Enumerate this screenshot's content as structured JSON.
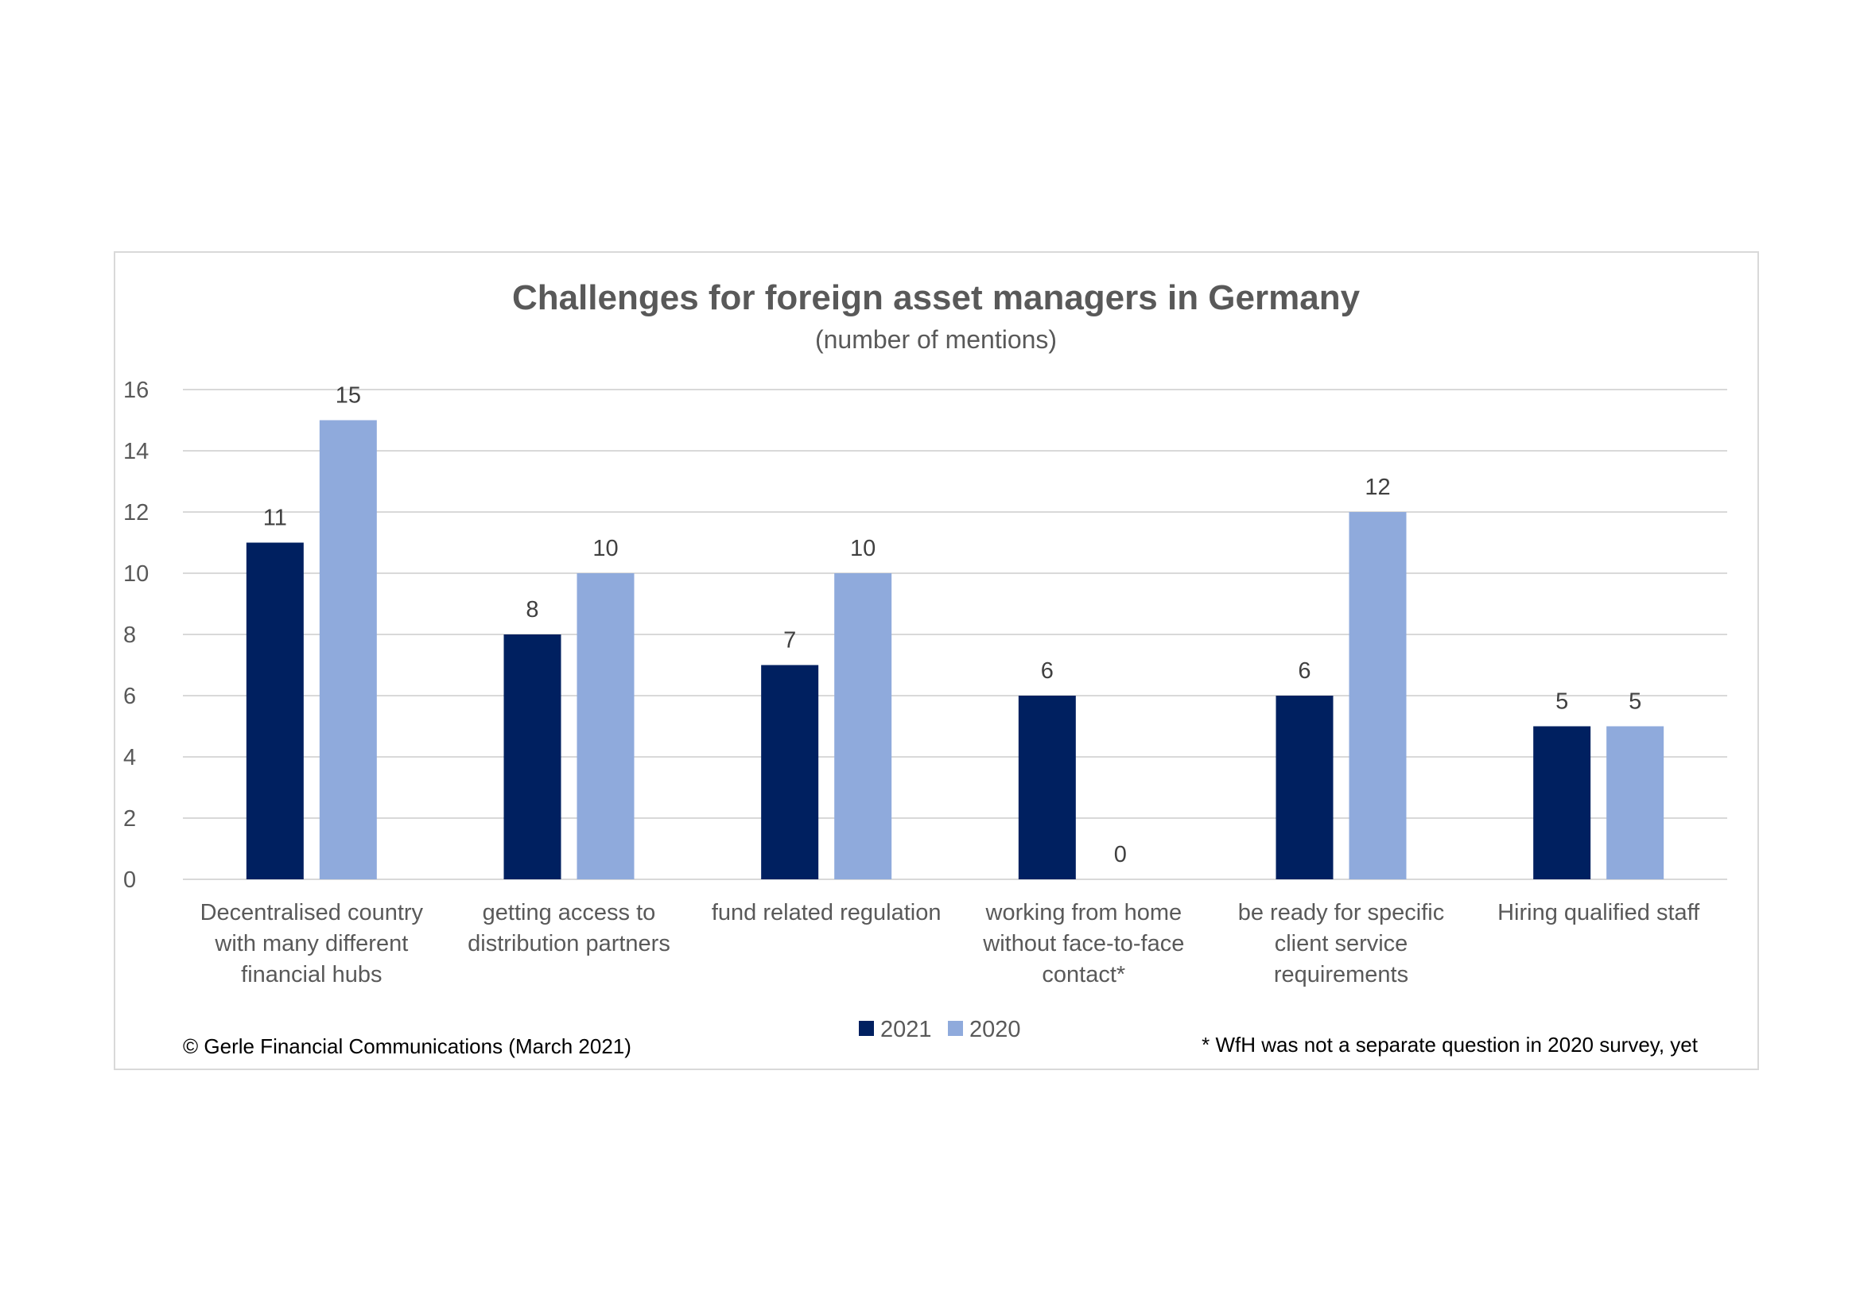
{
  "chart_data": {
    "type": "bar",
    "title": "Challenges for foreign asset managers in Germany",
    "subtitle": "(number of mentions)",
    "categories": [
      [
        "Decentralised country",
        "with many different",
        "financial hubs"
      ],
      [
        "getting access to",
        "distribution partners"
      ],
      [
        "fund related regulation"
      ],
      [
        "working from home",
        "without face-to-face",
        "contact*"
      ],
      [
        "be ready for specific",
        "client service",
        "requirements"
      ],
      [
        "Hiring qualified staff"
      ]
    ],
    "series": [
      {
        "name": "2021",
        "color": "#002060",
        "values": [
          11,
          8,
          7,
          6,
          6,
          5
        ],
        "labels": [
          "11",
          "8",
          "7",
          "6",
          "6",
          "5"
        ]
      },
      {
        "name": "2020",
        "color": "#8faadc",
        "values": [
          15,
          10,
          10,
          0,
          12,
          5
        ],
        "labels": [
          "15",
          "10",
          "10",
          "0",
          "12",
          "5"
        ]
      }
    ],
    "ylim": [
      0,
      16
    ],
    "yticks": [
      0,
      2,
      4,
      6,
      8,
      10,
      12,
      14,
      16
    ],
    "ytick_labels": [
      "0",
      "2",
      "4",
      "6",
      "8",
      "10",
      "12",
      "14",
      "16"
    ],
    "grid": true,
    "legend_position": "bottom"
  },
  "notes": {
    "copyright": "© Gerle Financial Communications (March 2021)",
    "footnote": "* WfH was not a separate question in 2020 survey, yet"
  },
  "colors": {
    "grid": "#d9d9d9",
    "text": "#595959",
    "frame": "#d9d9d9"
  }
}
